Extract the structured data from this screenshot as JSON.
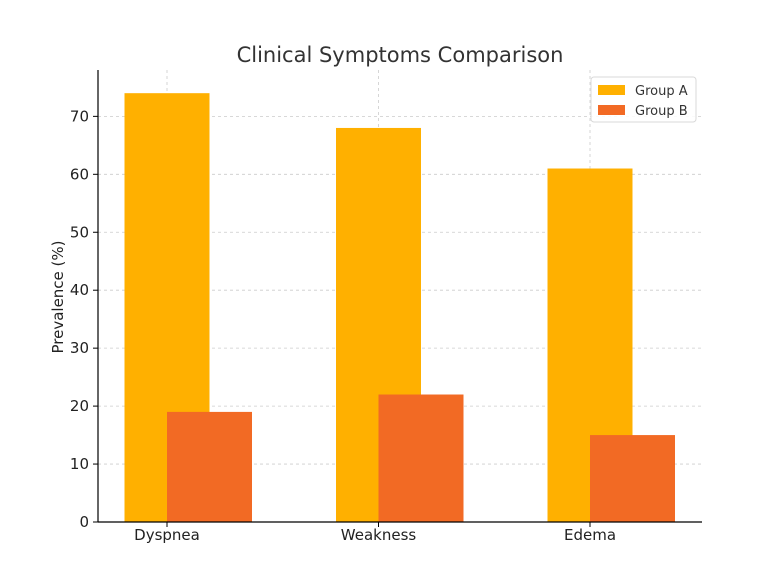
{
  "chart_data": {
    "type": "bar",
    "title": "Clinical Symptoms Comparison",
    "xlabel": "",
    "ylabel": "Prevalence (%)",
    "categories": [
      "Dyspnea",
      "Weakness",
      "Edema"
    ],
    "series": [
      {
        "name": "Group A",
        "values": [
          74,
          68,
          61
        ],
        "color": "#ffb000"
      },
      {
        "name": "Group B",
        "values": [
          19,
          22,
          15
        ],
        "color": "#f26a24"
      }
    ],
    "ylim": [
      0,
      78
    ],
    "yticks": [
      0,
      10,
      20,
      30,
      40,
      50,
      60,
      70
    ],
    "grid": true,
    "legend_position": "top-right"
  }
}
